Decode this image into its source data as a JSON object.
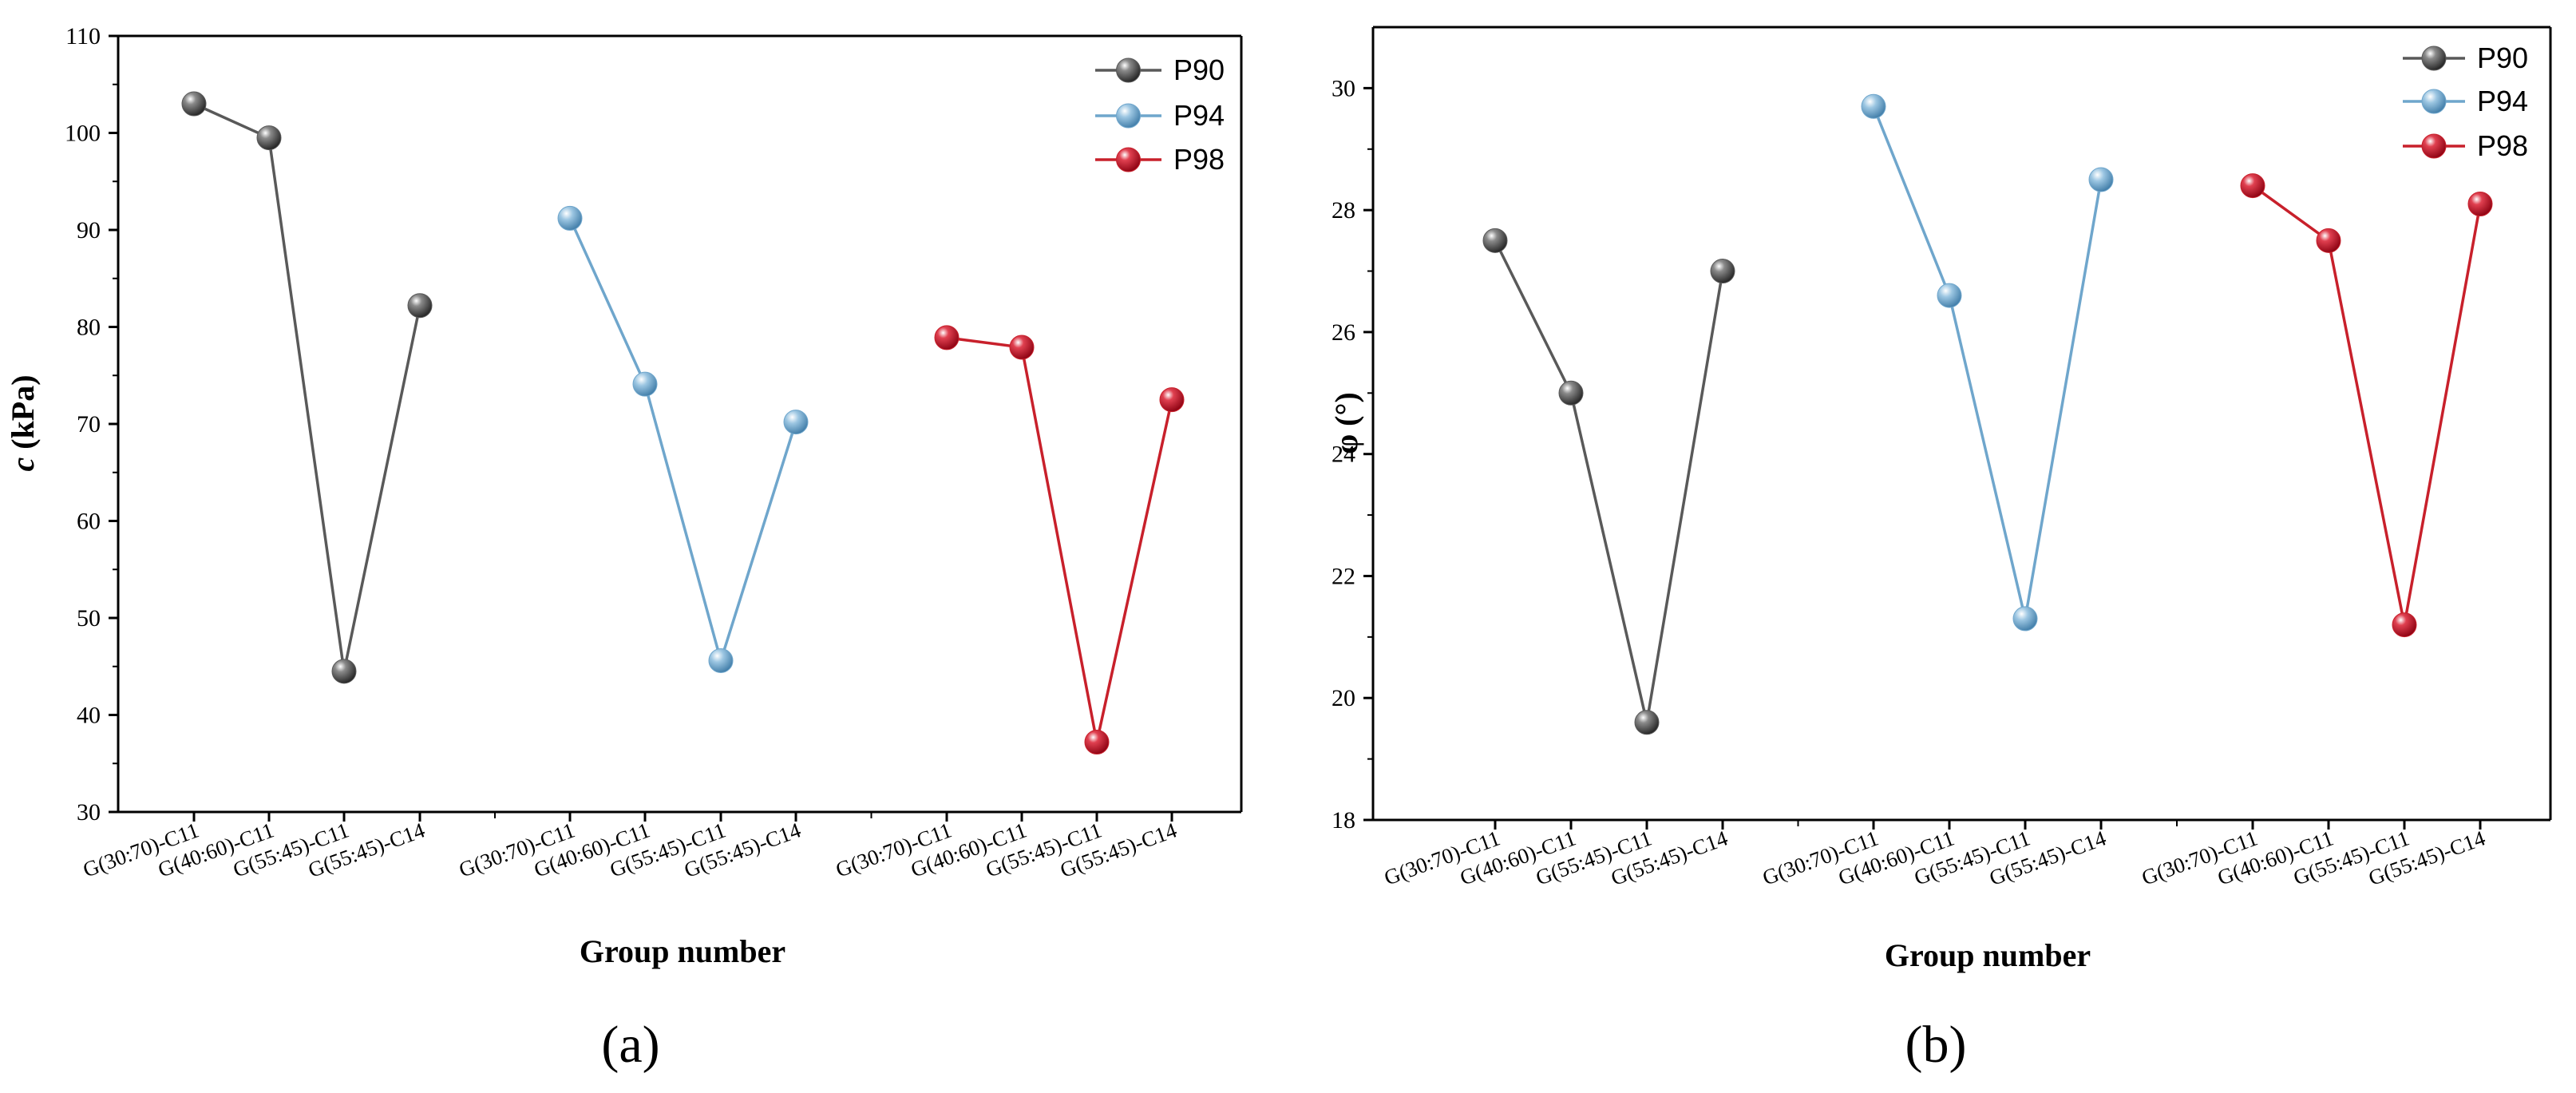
{
  "chart_data": [
    {
      "type": "line",
      "panel_label": "(a)",
      "xlabel": "Group number",
      "ylabel_italic": "c",
      "ylabel_rest": " (kPa)",
      "ylim": [
        30,
        110
      ],
      "yticks": [
        30,
        40,
        50,
        60,
        70,
        80,
        90,
        100,
        110
      ],
      "categories": [
        "G(30:70)-C11",
        "G(40:60)-C11",
        "G(55:45)-C11",
        "G(55:45)-C14"
      ],
      "series": [
        {
          "name": "P90",
          "color": "#595959",
          "values": [
            103,
            99.5,
            44.5,
            82.2
          ]
        },
        {
          "name": "P94",
          "color": "#6fa6cc",
          "values": [
            91.2,
            74.1,
            45.6,
            70.2
          ]
        },
        {
          "name": "P98",
          "color": "#c8202b",
          "values": [
            78.9,
            77.9,
            37.2,
            72.5
          ]
        }
      ],
      "legend_position": "top-right"
    },
    {
      "type": "line",
      "panel_label": "(b)",
      "xlabel": "Group number",
      "ylabel": "φ (°)",
      "ylim": [
        18,
        31
      ],
      "yticks": [
        18,
        20,
        22,
        24,
        26,
        28,
        30
      ],
      "categories": [
        "G(30:70)-C11",
        "G(40:60)-C11",
        "G(55:45)-C11",
        "G(55:45)-C14"
      ],
      "series": [
        {
          "name": "P90",
          "color": "#595959",
          "values": [
            27.5,
            25.0,
            19.6,
            27.0
          ]
        },
        {
          "name": "P94",
          "color": "#6fa6cc",
          "values": [
            29.7,
            26.6,
            21.3,
            28.5
          ]
        },
        {
          "name": "P98",
          "color": "#c8202b",
          "values": [
            28.4,
            27.5,
            21.2,
            28.1
          ]
        }
      ],
      "legend_position": "top-right"
    }
  ]
}
